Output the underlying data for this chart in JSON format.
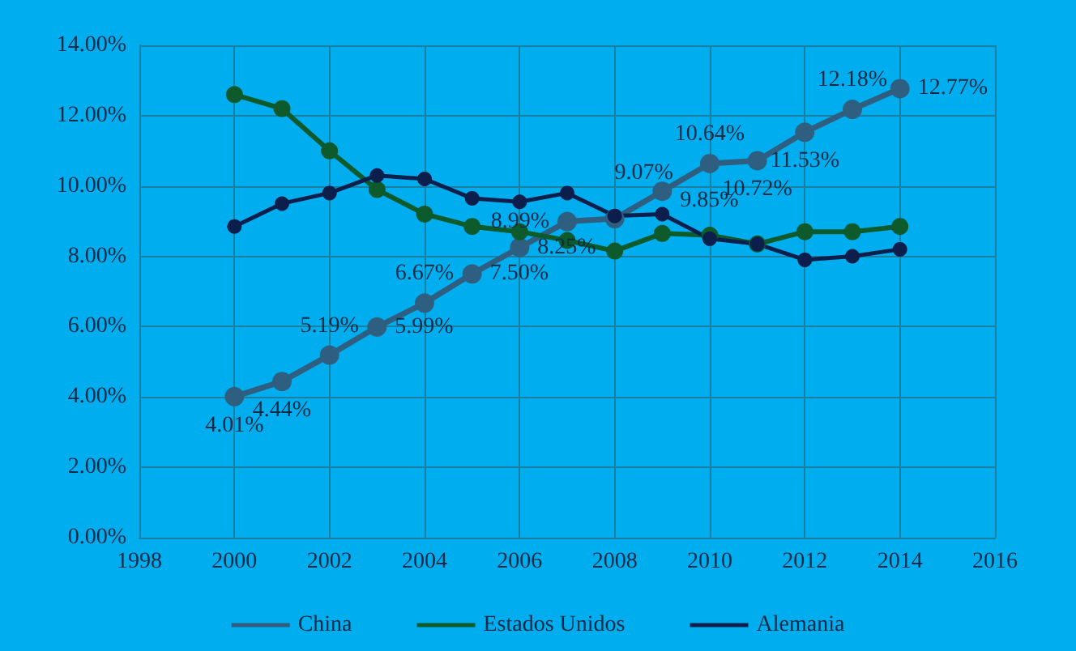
{
  "chart_data": {
    "type": "line",
    "x": [
      2000,
      2001,
      2002,
      2003,
      2004,
      2005,
      2006,
      2007,
      2008,
      2009,
      2010,
      2011,
      2012,
      2013,
      2014
    ],
    "xlim": [
      1998,
      2016
    ],
    "xticks": [
      1998,
      2000,
      2002,
      2004,
      2006,
      2008,
      2010,
      2012,
      2014,
      2016
    ],
    "ylim": [
      0,
      14
    ],
    "yticks": [
      {
        "value": 0,
        "label": "0.00%"
      },
      {
        "value": 2,
        "label": "2.00%"
      },
      {
        "value": 4,
        "label": "4.00%"
      },
      {
        "value": 6,
        "label": "6.00%"
      },
      {
        "value": 8,
        "label": "8.00%"
      },
      {
        "value": 10,
        "label": "10.00%"
      },
      {
        "value": 12,
        "label": "12.00%"
      },
      {
        "value": 14,
        "label": "14.00%"
      }
    ],
    "series": [
      {
        "name": "China",
        "color": "#2f5f80",
        "values": [
          4.01,
          4.44,
          5.19,
          5.99,
          6.67,
          7.5,
          8.25,
          8.99,
          9.07,
          9.85,
          10.64,
          10.72,
          11.53,
          12.18,
          12.77
        ],
        "value_labels": [
          "4.01%",
          "4.44%",
          "5.19%",
          "5.99%",
          "6.67%",
          "7.50%",
          "8.25%",
          "8.99%",
          "9.07%",
          "9.85%",
          "10.64%",
          "10.72%",
          "11.53%",
          "12.18%",
          "12.77%"
        ]
      },
      {
        "name": "Estados Unidos",
        "color": "#0d5a2c",
        "values": [
          12.6,
          12.2,
          11.0,
          9.9,
          9.2,
          8.85,
          8.7,
          8.45,
          8.15,
          8.65,
          8.6,
          8.35,
          8.7,
          8.7,
          8.85
        ]
      },
      {
        "name": "Alemania",
        "color": "#0c1f4c",
        "values": [
          8.85,
          9.5,
          9.8,
          10.3,
          10.2,
          9.65,
          9.55,
          9.8,
          9.15,
          9.2,
          8.5,
          8.35,
          7.9,
          8.0,
          8.2
        ]
      }
    ],
    "grid": true,
    "legend": "bottom",
    "marker": "circle",
    "line_style": "solid"
  }
}
